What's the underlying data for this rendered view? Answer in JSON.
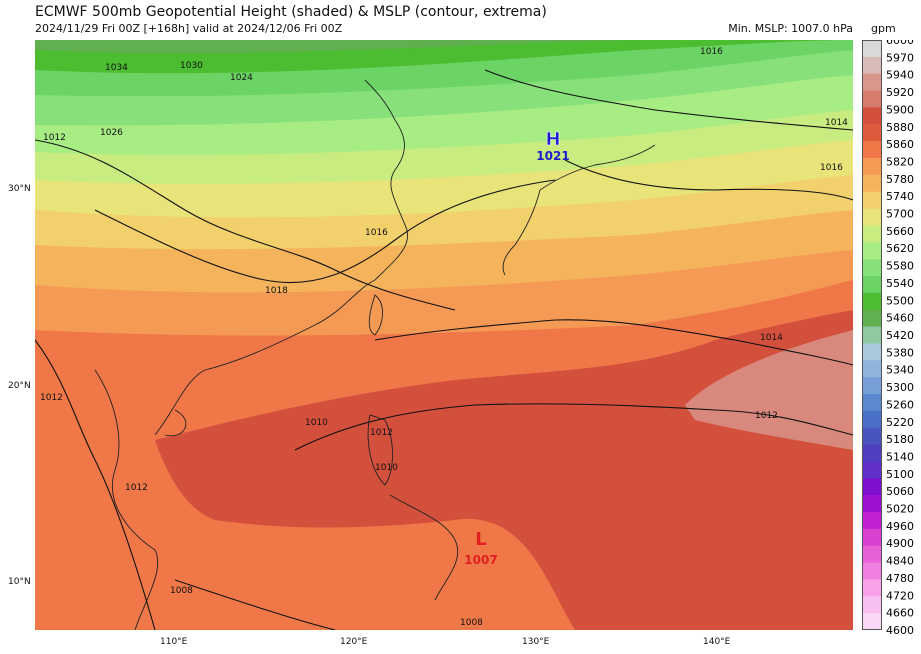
{
  "header": {
    "title": "ECMWF 500mb Geopotential Height (shaded) & MSLP (contour, extrema)",
    "subtitle": "2024/11/29 Fri 00Z [+168h] valid at 2024/12/06 Fri 00Z",
    "min_mslp": "Min. MSLP: 1007.0 hPa",
    "colorbar_unit": "gpm"
  },
  "axes": {
    "lat_labels": [
      "30°N",
      "20°N",
      "10°N"
    ],
    "lon_labels": [
      "110°E",
      "120°E",
      "130°E",
      "140°E"
    ]
  },
  "extrema": {
    "high": {
      "letter": "H",
      "value": "1021",
      "color": "#1d1dcc"
    },
    "low": {
      "letter": "L",
      "value": "1007",
      "color": "#e02020"
    }
  },
  "contour_labels": [
    "1034",
    "1030",
    "1024",
    "1026",
    "1016",
    "1016",
    "1018",
    "1014",
    "1014",
    "1012",
    "1016",
    "1012",
    "1010",
    "1010",
    "1012",
    "1012",
    "1008",
    "1012",
    "1008"
  ],
  "colorbar": {
    "levels": [
      "6000",
      "5970",
      "5940",
      "5920",
      "5900",
      "5880",
      "5860",
      "5820",
      "5780",
      "5740",
      "5700",
      "5660",
      "5620",
      "5580",
      "5540",
      "5500",
      "5460",
      "5420",
      "5380",
      "5340",
      "5300",
      "5260",
      "5220",
      "5180",
      "5140",
      "5100",
      "5060",
      "5020",
      "4960",
      "4900",
      "4840",
      "4780",
      "4720",
      "4660",
      "4600"
    ],
    "colors": [
      "#d9d9d9",
      "#d8bcb8",
      "#d9968c",
      "#d77b6c",
      "#d3503c",
      "#de5a3c",
      "#f07848",
      "#f59a55",
      "#f5b45c",
      "#f2d06c",
      "#e8e47a",
      "#c8ec80",
      "#a8ec84",
      "#88e07a",
      "#6cd465",
      "#4cbc30",
      "#60b050",
      "#90c8a0",
      "#a8c8dc",
      "#90b4dc",
      "#78a0d8",
      "#5c88d0",
      "#4a70c8",
      "#4a54c0",
      "#5040c0",
      "#6030c8",
      "#8010d0",
      "#a010d0",
      "#c020d0",
      "#d840d0",
      "#e860d8",
      "#f080e0",
      "#f8a0e8",
      "#f8c0f0",
      "#f8d8f4"
    ]
  }
}
